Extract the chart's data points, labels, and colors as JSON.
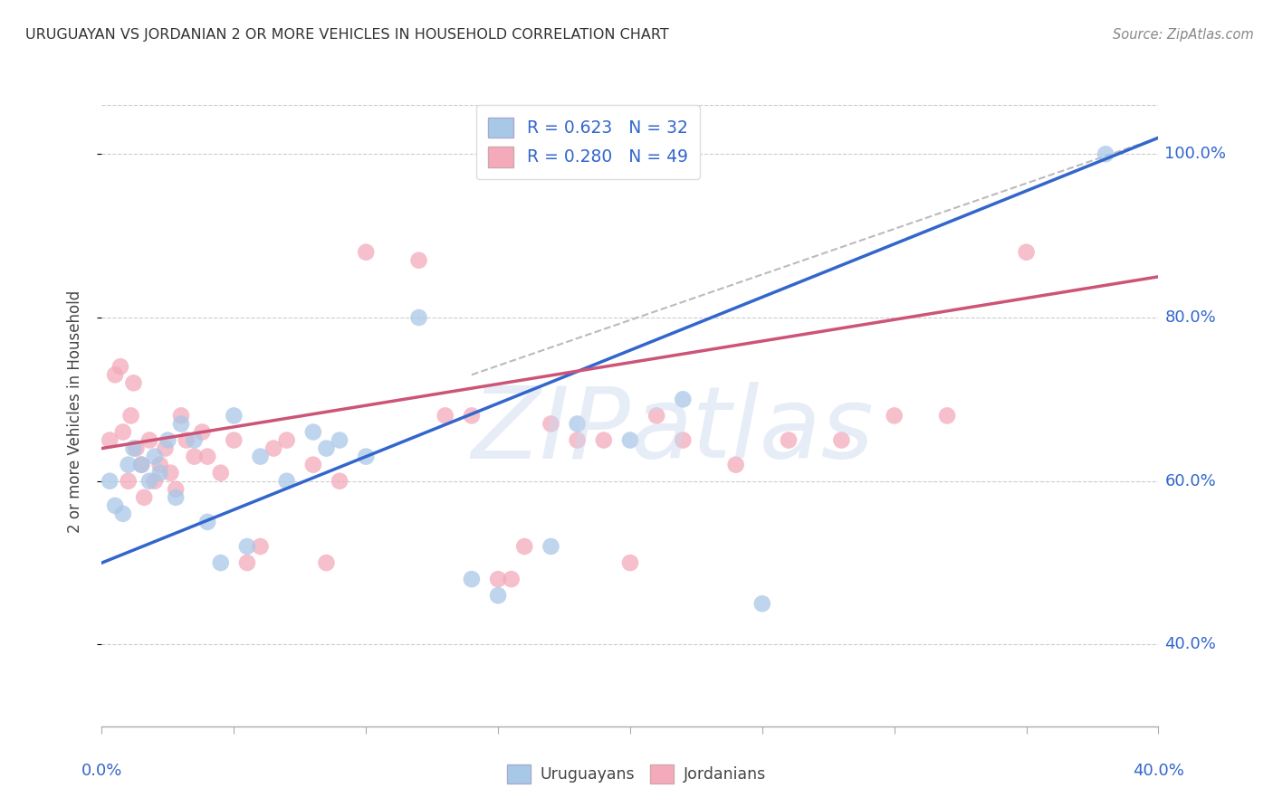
{
  "title": "URUGUAYAN VS JORDANIAN 2 OR MORE VEHICLES IN HOUSEHOLD CORRELATION CHART",
  "source": "Source: ZipAtlas.com",
  "ylabel": "2 or more Vehicles in Household",
  "xlim": [
    0.0,
    40.0
  ],
  "ylim": [
    30.0,
    107.0
  ],
  "ytick_values": [
    40.0,
    60.0,
    80.0,
    100.0
  ],
  "uruguayan_R": 0.623,
  "uruguayan_N": 32,
  "jordanian_R": 0.28,
  "jordanian_N": 49,
  "uru_scatter_color": "#A8C8E8",
  "jor_scatter_color": "#F4AABB",
  "uru_line_color": "#3366CC",
  "jor_line_color": "#CC5577",
  "grid_color": "#CCCCCC",
  "uruguayan_points_x": [
    0.3,
    0.5,
    0.8,
    1.0,
    1.2,
    1.5,
    1.8,
    2.0,
    2.2,
    2.5,
    2.8,
    3.0,
    3.5,
    4.0,
    4.5,
    5.0,
    5.5,
    6.0,
    7.0,
    8.0,
    8.5,
    9.0,
    10.0,
    12.0,
    14.0,
    15.0,
    17.0,
    18.0,
    20.0,
    22.0,
    25.0,
    38.0
  ],
  "uruguayan_points_y": [
    60.0,
    57.0,
    56.0,
    62.0,
    64.0,
    62.0,
    60.0,
    63.0,
    61.0,
    65.0,
    58.0,
    67.0,
    65.0,
    55.0,
    50.0,
    68.0,
    52.0,
    63.0,
    60.0,
    66.0,
    64.0,
    65.0,
    63.0,
    80.0,
    48.0,
    46.0,
    52.0,
    67.0,
    65.0,
    70.0,
    45.0,
    100.0
  ],
  "jordanian_points_x": [
    0.3,
    0.5,
    0.7,
    0.8,
    1.0,
    1.1,
    1.2,
    1.3,
    1.5,
    1.6,
    1.8,
    2.0,
    2.2,
    2.4,
    2.6,
    2.8,
    3.0,
    3.2,
    3.5,
    3.8,
    4.0,
    4.5,
    5.0,
    5.5,
    6.0,
    6.5,
    7.0,
    8.0,
    8.5,
    9.0,
    10.0,
    12.0,
    13.0,
    14.0,
    15.0,
    15.5,
    16.0,
    17.0,
    18.0,
    19.0,
    20.0,
    21.0,
    22.0,
    24.0,
    26.0,
    28.0,
    30.0,
    32.0,
    35.0
  ],
  "jordanian_points_y": [
    65.0,
    73.0,
    74.0,
    66.0,
    60.0,
    68.0,
    72.0,
    64.0,
    62.0,
    58.0,
    65.0,
    60.0,
    62.0,
    64.0,
    61.0,
    59.0,
    68.0,
    65.0,
    63.0,
    66.0,
    63.0,
    61.0,
    65.0,
    50.0,
    52.0,
    64.0,
    65.0,
    62.0,
    50.0,
    60.0,
    88.0,
    87.0,
    68.0,
    68.0,
    48.0,
    48.0,
    52.0,
    67.0,
    65.0,
    65.0,
    50.0,
    68.0,
    65.0,
    62.0,
    65.0,
    65.0,
    68.0,
    68.0,
    88.0
  ],
  "uru_line_x0": 0.0,
  "uru_line_y0": 50.0,
  "uru_line_x1": 40.0,
  "uru_line_y1": 102.0,
  "jor_line_x0": 0.0,
  "jor_line_y0": 64.0,
  "jor_line_x1": 40.0,
  "jor_line_y1": 85.0,
  "dash_x0": 14.0,
  "dash_y0": 73.0,
  "dash_x1": 40.0,
  "dash_y1": 102.0
}
